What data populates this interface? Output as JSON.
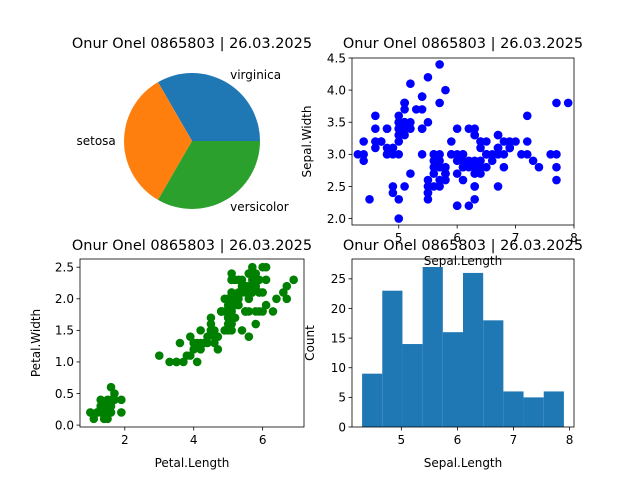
{
  "chart_data": [
    {
      "type": "pie",
      "title": "Onur Onel 0865803 | 26.03.2025",
      "slices": [
        {
          "label": "setosa",
          "value": 50,
          "color": "#ff7f0e"
        },
        {
          "label": "versicolor",
          "value": 50,
          "color": "#2ca02c"
        },
        {
          "label": "virginica",
          "value": 50,
          "color": "#1f77b4"
        }
      ]
    },
    {
      "type": "scatter",
      "title": "Onur Onel 0865803 | 26.03.2025",
      "xlabel": "Sepal.Length",
      "ylabel": "Sepal.Width",
      "color": "#0000ff",
      "xlim": [
        4.2,
        8.0
      ],
      "ylim": [
        1.9,
        4.5
      ],
      "xticks": [
        5,
        6,
        7,
        8
      ],
      "yticks": [
        2.0,
        2.5,
        3.0,
        3.5,
        4.0,
        4.5
      ],
      "ytick_labels": [
        "2.0",
        "2.5",
        "3.0",
        "3.5",
        "4.0",
        "4.5"
      ],
      "points": [
        [
          5.1,
          3.5
        ],
        [
          4.9,
          3.0
        ],
        [
          4.7,
          3.2
        ],
        [
          4.6,
          3.1
        ],
        [
          5.0,
          3.6
        ],
        [
          5.4,
          3.9
        ],
        [
          4.6,
          3.4
        ],
        [
          5.0,
          3.4
        ],
        [
          4.4,
          2.9
        ],
        [
          4.9,
          3.1
        ],
        [
          5.4,
          3.7
        ],
        [
          4.8,
          3.4
        ],
        [
          4.8,
          3.0
        ],
        [
          4.3,
          3.0
        ],
        [
          5.8,
          4.0
        ],
        [
          5.7,
          4.4
        ],
        [
          5.4,
          3.9
        ],
        [
          5.1,
          3.5
        ],
        [
          5.7,
          3.8
        ],
        [
          5.1,
          3.8
        ],
        [
          5.4,
          3.4
        ],
        [
          5.1,
          3.7
        ],
        [
          4.6,
          3.6
        ],
        [
          5.1,
          3.3
        ],
        [
          4.8,
          3.4
        ],
        [
          5.0,
          3.0
        ],
        [
          5.0,
          3.4
        ],
        [
          5.2,
          3.5
        ],
        [
          5.2,
          3.4
        ],
        [
          4.7,
          3.2
        ],
        [
          4.8,
          3.1
        ],
        [
          5.4,
          3.4
        ],
        [
          5.2,
          4.1
        ],
        [
          5.5,
          4.2
        ],
        [
          4.9,
          3.1
        ],
        [
          5.0,
          3.2
        ],
        [
          5.5,
          3.5
        ],
        [
          4.4,
          3.0
        ],
        [
          5.1,
          3.4
        ],
        [
          5.0,
          3.5
        ],
        [
          4.5,
          2.3
        ],
        [
          4.4,
          3.2
        ],
        [
          5.0,
          3.5
        ],
        [
          5.1,
          3.8
        ],
        [
          4.8,
          3.0
        ],
        [
          5.1,
          3.8
        ],
        [
          4.6,
          3.2
        ],
        [
          5.3,
          3.7
        ],
        [
          5.0,
          3.3
        ],
        [
          7.0,
          3.2
        ],
        [
          6.4,
          3.2
        ],
        [
          6.9,
          3.1
        ],
        [
          5.5,
          2.3
        ],
        [
          6.5,
          2.8
        ],
        [
          5.7,
          2.8
        ],
        [
          6.3,
          3.3
        ],
        [
          4.9,
          2.4
        ],
        [
          6.6,
          2.9
        ],
        [
          5.2,
          2.7
        ],
        [
          5.0,
          2.0
        ],
        [
          5.9,
          3.0
        ],
        [
          6.0,
          2.2
        ],
        [
          6.1,
          2.9
        ],
        [
          5.6,
          2.9
        ],
        [
          6.7,
          3.1
        ],
        [
          5.6,
          3.0
        ],
        [
          5.8,
          2.7
        ],
        [
          6.2,
          2.2
        ],
        [
          5.6,
          2.5
        ],
        [
          5.9,
          3.2
        ],
        [
          6.1,
          2.8
        ],
        [
          6.3,
          2.5
        ],
        [
          6.1,
          2.8
        ],
        [
          6.4,
          2.9
        ],
        [
          6.6,
          3.0
        ],
        [
          6.8,
          2.8
        ],
        [
          6.7,
          3.0
        ],
        [
          6.0,
          2.9
        ],
        [
          5.7,
          2.6
        ],
        [
          5.5,
          2.4
        ],
        [
          5.5,
          2.4
        ],
        [
          5.8,
          2.7
        ],
        [
          6.0,
          2.7
        ],
        [
          5.4,
          3.0
        ],
        [
          6.0,
          3.4
        ],
        [
          6.7,
          3.1
        ],
        [
          6.3,
          2.3
        ],
        [
          5.6,
          3.0
        ],
        [
          5.5,
          2.5
        ],
        [
          5.5,
          2.6
        ],
        [
          6.1,
          3.0
        ],
        [
          5.8,
          2.6
        ],
        [
          5.0,
          2.3
        ],
        [
          5.6,
          2.7
        ],
        [
          5.7,
          3.0
        ],
        [
          5.7,
          2.9
        ],
        [
          6.2,
          2.9
        ],
        [
          5.1,
          2.5
        ],
        [
          5.7,
          2.8
        ],
        [
          6.3,
          3.3
        ],
        [
          5.8,
          2.7
        ],
        [
          7.1,
          3.0
        ],
        [
          6.3,
          2.9
        ],
        [
          6.5,
          3.0
        ],
        [
          7.6,
          3.0
        ],
        [
          4.9,
          2.5
        ],
        [
          7.3,
          2.9
        ],
        [
          6.7,
          2.5
        ],
        [
          7.2,
          3.6
        ],
        [
          6.5,
          3.2
        ],
        [
          6.4,
          2.7
        ],
        [
          6.8,
          3.0
        ],
        [
          5.7,
          2.5
        ],
        [
          5.8,
          2.8
        ],
        [
          6.4,
          3.2
        ],
        [
          6.5,
          3.0
        ],
        [
          7.7,
          3.8
        ],
        [
          7.7,
          2.6
        ],
        [
          6.0,
          2.2
        ],
        [
          6.9,
          3.2
        ],
        [
          5.6,
          2.8
        ],
        [
          7.7,
          2.8
        ],
        [
          6.3,
          2.7
        ],
        [
          6.7,
          3.3
        ],
        [
          7.2,
          3.2
        ],
        [
          6.2,
          2.8
        ],
        [
          6.1,
          3.0
        ],
        [
          6.4,
          2.8
        ],
        [
          7.2,
          3.0
        ],
        [
          7.4,
          2.8
        ],
        [
          7.9,
          3.8
        ],
        [
          6.4,
          2.8
        ],
        [
          6.3,
          2.8
        ],
        [
          6.1,
          2.6
        ],
        [
          7.7,
          3.0
        ],
        [
          6.3,
          3.4
        ],
        [
          6.4,
          3.1
        ],
        [
          6.0,
          3.0
        ],
        [
          6.9,
          3.1
        ],
        [
          6.7,
          3.1
        ],
        [
          6.9,
          3.1
        ],
        [
          6.8,
          3.2
        ],
        [
          6.7,
          3.3
        ],
        [
          6.7,
          3.0
        ],
        [
          6.3,
          2.5
        ],
        [
          6.5,
          3.0
        ],
        [
          6.2,
          3.4
        ],
        [
          5.9,
          3.0
        ]
      ]
    },
    {
      "type": "scatter",
      "title": "Onur Onel 0865803 | 26.03.2025",
      "xlabel": "Petal.Length",
      "ylabel": "Petal.Width",
      "color": "#008000",
      "xlim": [
        0.7,
        7.2
      ],
      "ylim": [
        -0.03,
        2.63
      ],
      "xticks": [
        2,
        4,
        6
      ],
      "yticks": [
        0.0,
        0.5,
        1.0,
        1.5,
        2.0,
        2.5
      ],
      "ytick_labels": [
        "0.0",
        "0.5",
        "1.0",
        "1.5",
        "2.0",
        "2.5"
      ],
      "points": [
        [
          1.4,
          0.2
        ],
        [
          1.3,
          0.2
        ],
        [
          1.5,
          0.2
        ],
        [
          1.7,
          0.4
        ],
        [
          1.4,
          0.3
        ],
        [
          1.5,
          0.1
        ],
        [
          1.6,
          0.2
        ],
        [
          1.1,
          0.1
        ],
        [
          1.2,
          0.2
        ],
        [
          1.0,
          0.2
        ],
        [
          1.7,
          0.5
        ],
        [
          1.9,
          0.2
        ],
        [
          1.6,
          0.4
        ],
        [
          1.5,
          0.4
        ],
        [
          1.3,
          0.3
        ],
        [
          1.9,
          0.4
        ],
        [
          1.6,
          0.6
        ],
        [
          1.4,
          0.1
        ],
        [
          1.6,
          0.3
        ],
        [
          1.2,
          0.2
        ],
        [
          1.5,
          0.3
        ],
        [
          1.3,
          0.4
        ],
        [
          4.7,
          1.4
        ],
        [
          4.5,
          1.5
        ],
        [
          4.9,
          1.5
        ],
        [
          4.0,
          1.3
        ],
        [
          4.6,
          1.5
        ],
        [
          3.3,
          1.0
        ],
        [
          4.4,
          1.4
        ],
        [
          3.9,
          1.4
        ],
        [
          3.5,
          1.0
        ],
        [
          4.2,
          1.5
        ],
        [
          3.6,
          1.3
        ],
        [
          4.1,
          1.0
        ],
        [
          3.9,
          1.1
        ],
        [
          4.8,
          1.8
        ],
        [
          4.0,
          1.3
        ],
        [
          4.7,
          1.2
        ],
        [
          4.3,
          1.3
        ],
        [
          5.0,
          1.7
        ],
        [
          3.5,
          1.0
        ],
        [
          3.8,
          1.1
        ],
        [
          3.7,
          1.0
        ],
        [
          5.1,
          1.6
        ],
        [
          4.5,
          1.6
        ],
        [
          4.4,
          1.3
        ],
        [
          4.1,
          1.3
        ],
        [
          4.0,
          1.2
        ],
        [
          4.6,
          1.4
        ],
        [
          3.0,
          1.1
        ],
        [
          4.2,
          1.2
        ],
        [
          4.2,
          1.3
        ],
        [
          6.0,
          2.5
        ],
        [
          5.1,
          1.9
        ],
        [
          5.9,
          2.1
        ],
        [
          5.6,
          1.8
        ],
        [
          5.8,
          2.2
        ],
        [
          6.6,
          2.1
        ],
        [
          4.5,
          1.7
        ],
        [
          6.3,
          1.8
        ],
        [
          6.1,
          2.5
        ],
        [
          5.3,
          1.9
        ],
        [
          5.5,
          2.1
        ],
        [
          5.0,
          2.0
        ],
        [
          5.1,
          2.4
        ],
        [
          5.3,
          2.3
        ],
        [
          6.7,
          2.2
        ],
        [
          6.9,
          2.3
        ],
        [
          5.7,
          2.3
        ],
        [
          6.7,
          2.0
        ],
        [
          4.9,
          1.8
        ],
        [
          5.7,
          2.1
        ],
        [
          6.0,
          1.8
        ],
        [
          4.8,
          1.8
        ],
        [
          5.6,
          2.1
        ],
        [
          5.8,
          1.6
        ],
        [
          6.4,
          2.0
        ],
        [
          5.1,
          1.5
        ],
        [
          5.6,
          1.4
        ],
        [
          6.1,
          2.3
        ],
        [
          5.6,
          2.4
        ],
        [
          5.5,
          1.8
        ],
        [
          5.4,
          2.1
        ],
        [
          5.2,
          2.3
        ],
        [
          5.1,
          2.3
        ],
        [
          5.9,
          2.3
        ],
        [
          5.7,
          2.5
        ],
        [
          5.2,
          2.0
        ],
        [
          5.4,
          2.3
        ],
        [
          5.0,
          1.5
        ],
        [
          5.8,
          1.8
        ],
        [
          5.6,
          2.2
        ],
        [
          5.0,
          1.9
        ],
        [
          5.9,
          1.8
        ],
        [
          5.5,
          1.8
        ],
        [
          5.1,
          1.8
        ],
        [
          5.3,
          2.1
        ],
        [
          5.7,
          2.4
        ],
        [
          5.8,
          2.4
        ],
        [
          5.1,
          2.0
        ],
        [
          6.1,
          1.9
        ],
        [
          5.6,
          2.0
        ],
        [
          5.5,
          1.8
        ],
        [
          4.8,
          1.8
        ],
        [
          5.4,
          1.5
        ],
        [
          5.2,
          1.7
        ],
        [
          5.5,
          2.2
        ],
        [
          4.9,
          1.5
        ],
        [
          5.0,
          1.6
        ],
        [
          5.2,
          1.9
        ],
        [
          5.6,
          2.4
        ],
        [
          5.4,
          2.2
        ],
        [
          5.0,
          1.7
        ],
        [
          4.5,
          1.5
        ],
        [
          4.6,
          1.3
        ],
        [
          6.0,
          2.1
        ],
        [
          5.6,
          2.2
        ],
        [
          4.8,
          1.8
        ],
        [
          5.1,
          2.1
        ],
        [
          5.3,
          2.0
        ],
        [
          4.9,
          2.0
        ],
        [
          5.0,
          2.0
        ],
        [
          5.9,
          2.1
        ],
        [
          5.1,
          2.3
        ]
      ]
    },
    {
      "type": "histogram",
      "title": "Onur Onel 0865803 | 26.03.2025",
      "xlabel": "Sepal.Length",
      "ylabel": "Count",
      "color": "#1f77b4",
      "bin_edges": [
        4.3,
        4.66,
        5.02,
        5.38,
        5.74,
        6.1,
        6.46,
        6.82,
        7.18,
        7.54,
        7.9
      ],
      "counts": [
        9,
        23,
        14,
        27,
        16,
        26,
        18,
        6,
        5,
        6
      ],
      "xlim": [
        4.12,
        8.08
      ],
      "ylim": [
        0,
        28.35
      ],
      "xticks": [
        5,
        6,
        7,
        8
      ],
      "yticks": [
        0,
        5,
        10,
        15,
        20,
        25
      ]
    }
  ]
}
